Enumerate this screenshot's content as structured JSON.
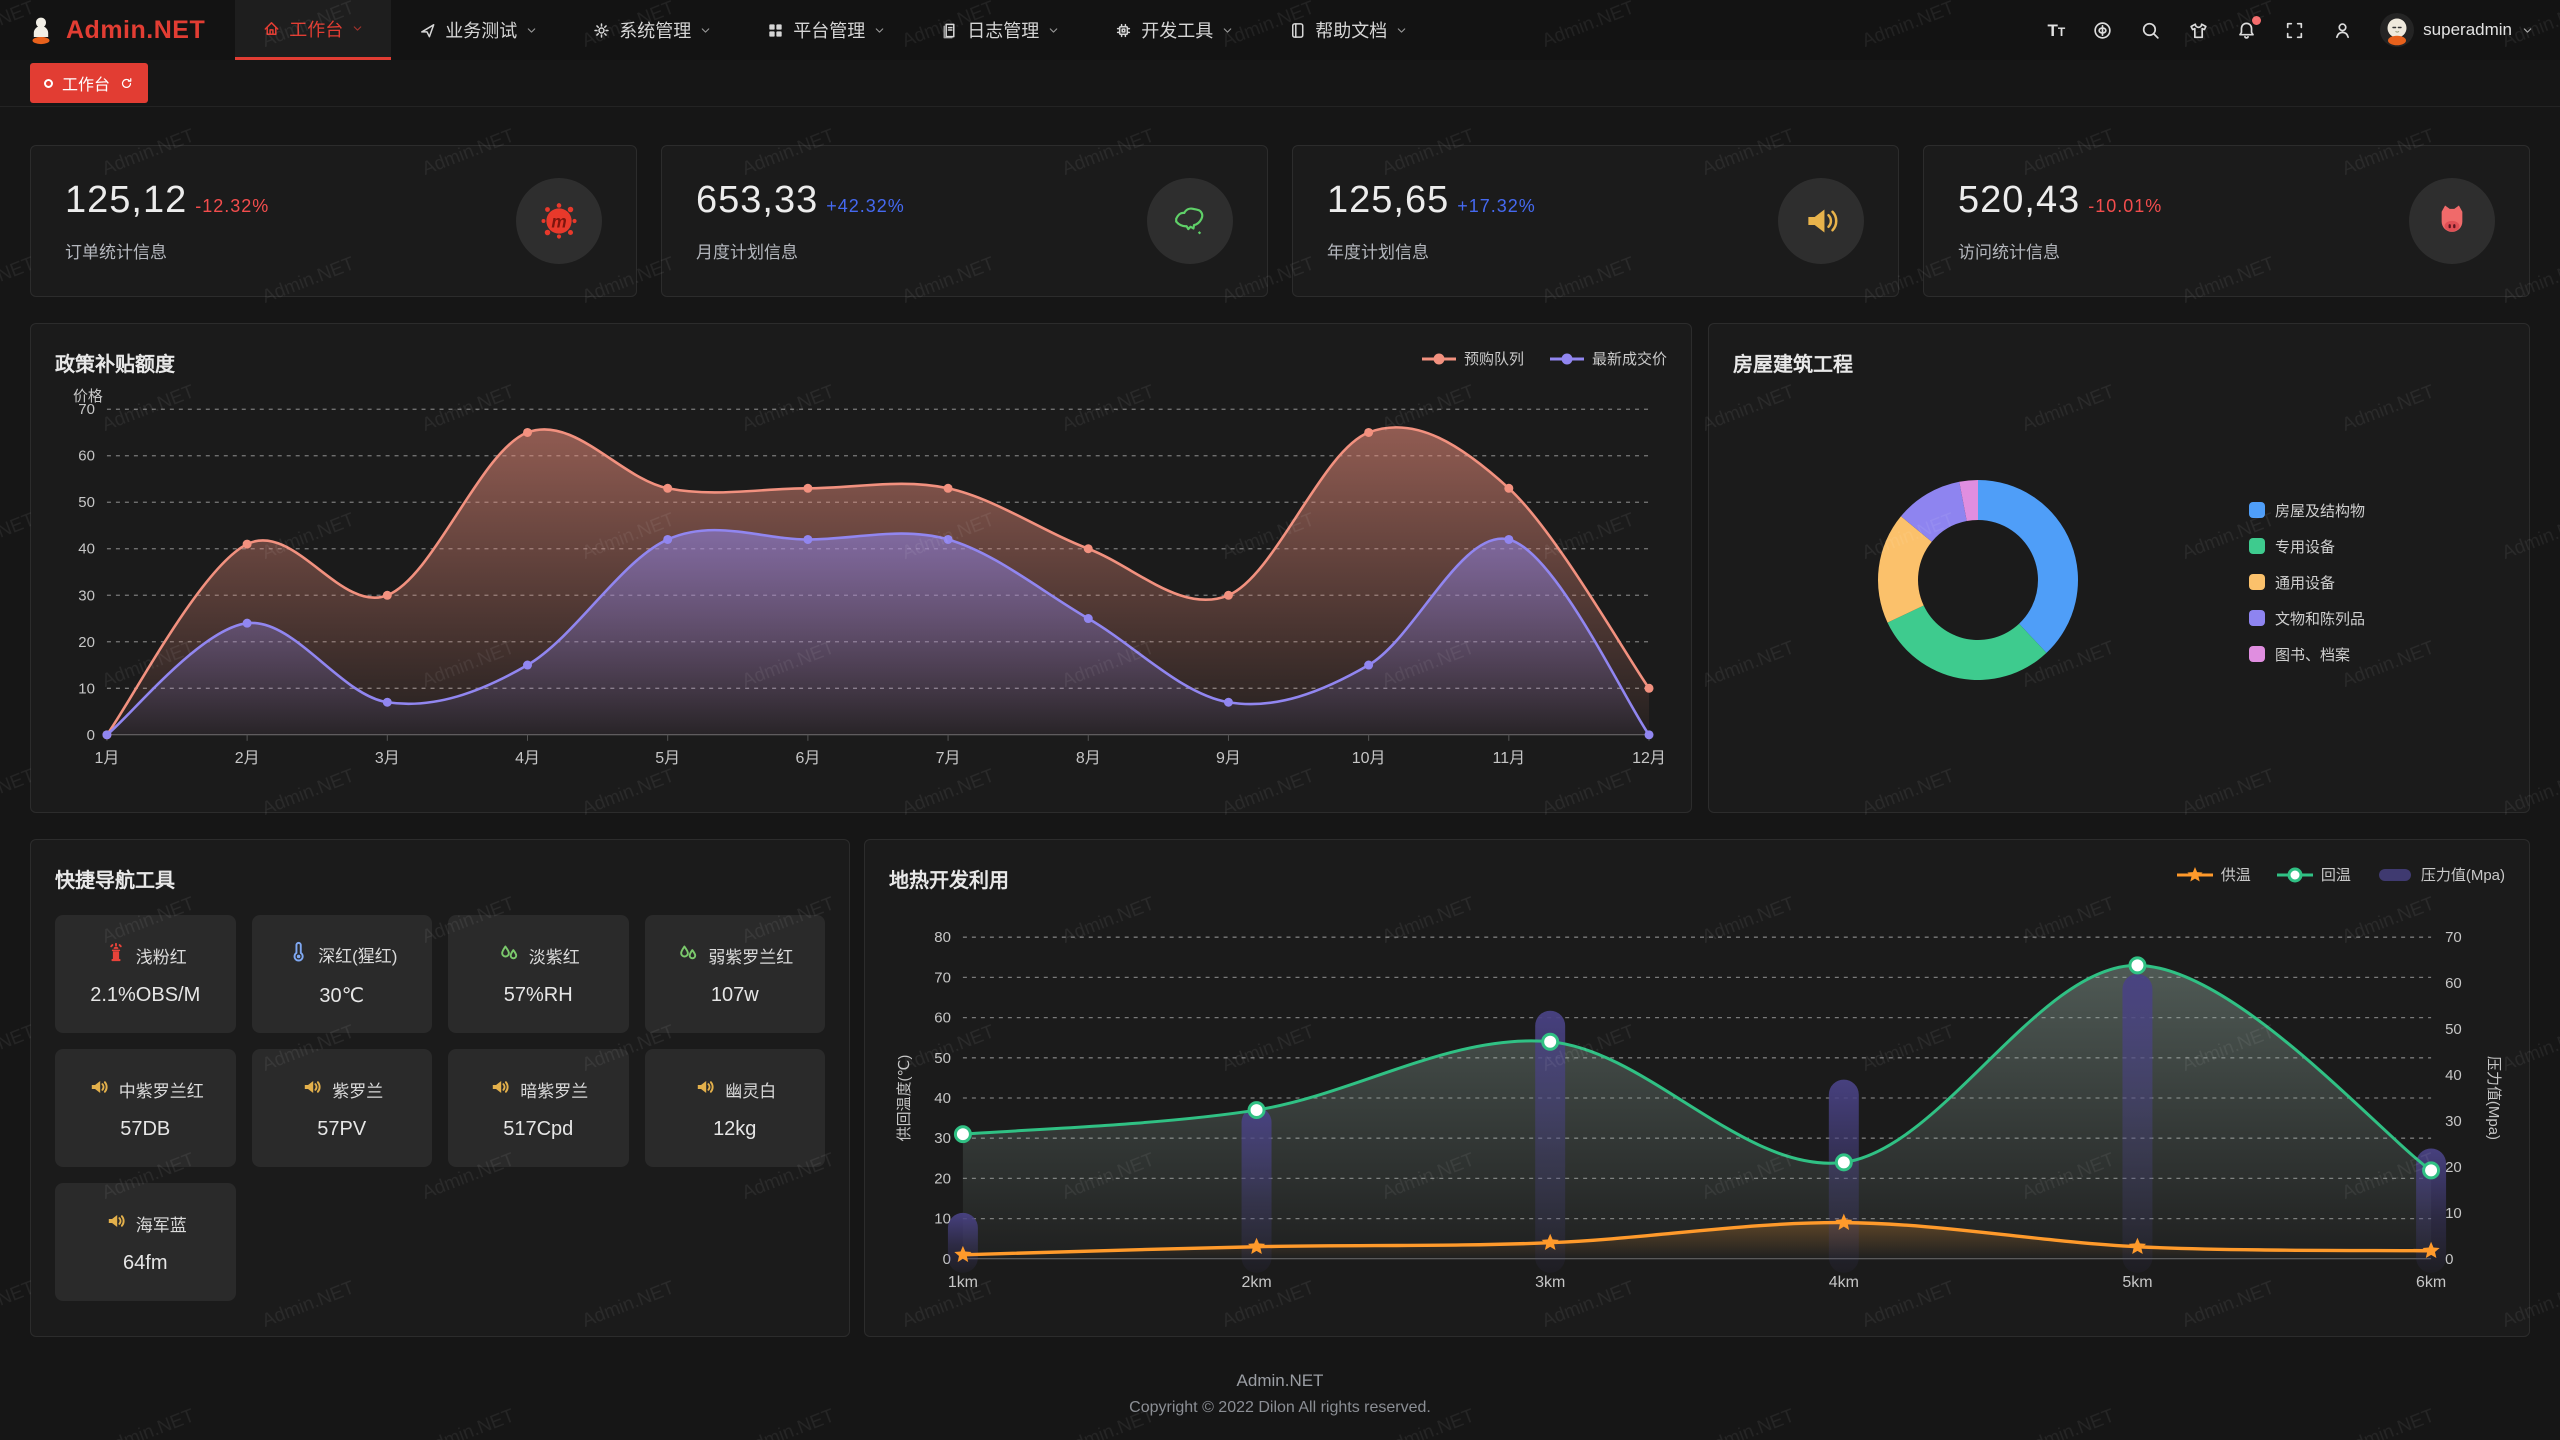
{
  "navbar": {
    "logo": {
      "text": "Admin.NET"
    },
    "items": [
      {
        "label": "工作台",
        "icon": "home-icon",
        "active": true
      },
      {
        "label": "业务测试",
        "icon": "navigation-icon",
        "active": false
      },
      {
        "label": "系统管理",
        "icon": "gear-icon",
        "active": false
      },
      {
        "label": "平台管理",
        "icon": "grid-icon",
        "active": false
      },
      {
        "label": "日志管理",
        "icon": "document-icon",
        "active": false
      },
      {
        "label": "开发工具",
        "icon": "chip-icon",
        "active": false
      },
      {
        "label": "帮助文档",
        "icon": "book-icon",
        "active": false
      }
    ],
    "actions": [
      {
        "name": "font-size",
        "icon": "text-size-icon",
        "badge": false
      },
      {
        "name": "language",
        "icon": "language-icon",
        "badge": false
      },
      {
        "name": "search",
        "icon": "search-icon",
        "badge": false
      },
      {
        "name": "theme",
        "icon": "shirt-icon",
        "badge": false
      },
      {
        "name": "notifications",
        "icon": "bell-icon",
        "badge": true
      },
      {
        "name": "fullscreen",
        "icon": "fullscreen-icon",
        "badge": false
      },
      {
        "name": "profile",
        "icon": "person-icon",
        "badge": false
      }
    ],
    "user": {
      "name": "superadmin"
    }
  },
  "tabbar": {
    "tabs": [
      {
        "label": "工作台",
        "active": true
      }
    ]
  },
  "colors": {
    "brand": "#E23D33",
    "up": "#4569F0",
    "down": "#F34D4D"
  },
  "stats": {
    "cards": [
      {
        "value": "125,12",
        "change": "-12.32%",
        "trend": "down",
        "label": "订单统计信息",
        "icon": "splat-m-icon"
      },
      {
        "value": "653,33",
        "change": "+42.32%",
        "trend": "up",
        "label": "月度计划信息",
        "icon": "china-map-icon"
      },
      {
        "value": "125,65",
        "change": "+17.32%",
        "trend": "up",
        "label": "年度计划信息",
        "icon": "speaker-big-icon"
      },
      {
        "value": "520,43",
        "change": "-10.01%",
        "trend": "down",
        "label": "访问统计信息",
        "icon": "cat-icon"
      }
    ]
  },
  "quick_nav": {
    "title": "快捷导航工具",
    "items": [
      {
        "name": "浅粉红",
        "value": "2.1%OBS/M",
        "icon": "hydrant-icon",
        "icon_color": "#E8433A"
      },
      {
        "name": "深红(猩红)",
        "value": "30℃",
        "icon": "thermometer-icon",
        "icon_color": "#7FA8F2"
      },
      {
        "name": "淡紫红",
        "value": "57%RH",
        "icon": "drops-icon",
        "icon_color": "#7BC96C"
      },
      {
        "name": "弱紫罗兰红",
        "value": "107w",
        "icon": "drops-icon",
        "icon_color": "#7BC96C"
      },
      {
        "name": "中紫罗兰红",
        "value": "57DB",
        "icon": "speaker-icon",
        "icon_color": "#E3B04B"
      },
      {
        "name": "紫罗兰",
        "value": "57PV",
        "icon": "speaker-icon",
        "icon_color": "#E3B04B"
      },
      {
        "name": "暗紫罗兰",
        "value": "517Cpd",
        "icon": "speaker-icon",
        "icon_color": "#E3B04B"
      },
      {
        "name": "幽灵白",
        "value": "12kg",
        "icon": "speaker-icon",
        "icon_color": "#E3B04B"
      },
      {
        "name": "海军蓝",
        "value": "64fm",
        "icon": "speaker-icon",
        "icon_color": "#E3B04B"
      }
    ]
  },
  "footer": {
    "line1": "Admin.NET",
    "line2": "Copyright © 2022 Dilon All rights reserved."
  },
  "watermark": {
    "text": "Admin.NET"
  },
  "chart_data": [
    {
      "type": "line",
      "title": "政策补贴额度",
      "ylabel": "价格",
      "categories": [
        "1月",
        "2月",
        "3月",
        "4月",
        "5月",
        "6月",
        "7月",
        "8月",
        "9月",
        "10月",
        "11月",
        "12月"
      ],
      "series": [
        {
          "name": "预购队列",
          "color": "#F2917F",
          "values": [
            0,
            41,
            30,
            65,
            53,
            53,
            53,
            40,
            30,
            65,
            53,
            10
          ]
        },
        {
          "name": "最新成交价",
          "color": "#9186F0",
          "values": [
            0,
            24,
            7,
            15,
            42,
            42,
            42,
            25,
            7,
            15,
            42,
            0
          ]
        }
      ],
      "ylim": [
        0,
        70
      ],
      "grid": "dashed",
      "legend_position": "top-right",
      "smooth": true
    },
    {
      "type": "pie",
      "title": "房屋建筑工程",
      "donut": true,
      "legend_position": "right",
      "slices": [
        {
          "label": "房屋及结构物",
          "value": 38,
          "color": "#4F9EF8"
        },
        {
          "label": "专用设备",
          "value": 30,
          "color": "#3ECB8E"
        },
        {
          "label": "通用设备",
          "value": 18,
          "color": "#FBC16B"
        },
        {
          "label": "文物和陈列品",
          "value": 11,
          "color": "#8E84F0"
        },
        {
          "label": "图书、档案",
          "value": 3,
          "color": "#E08EE0"
        }
      ]
    },
    {
      "type": "line+bar",
      "title": "地热开发利用",
      "categories": [
        "1km",
        "2km",
        "3km",
        "4km",
        "5km",
        "6km"
      ],
      "ylabel_left": "供回温度(℃)",
      "ylabel_right": "压力值(Mpa)",
      "ylim_left": [
        0,
        80
      ],
      "ylim_right": [
        0,
        70
      ],
      "grid": "dashed",
      "legend_position": "top-right",
      "series": [
        {
          "name": "供温",
          "kind": "line",
          "axis": "left",
          "marker": "star",
          "color": "#FF9A2B",
          "values": [
            1,
            3,
            4,
            9,
            3,
            2
          ]
        },
        {
          "name": "回温",
          "kind": "line",
          "axis": "left",
          "marker": "circle",
          "color": "#30C184",
          "values": [
            31,
            37,
            54,
            24,
            73,
            22
          ]
        },
        {
          "name": "压力值(Mpa)",
          "kind": "bar",
          "axis": "right",
          "color": "#494284",
          "values": [
            10,
            33,
            54,
            39,
            62,
            24
          ]
        }
      ]
    }
  ]
}
